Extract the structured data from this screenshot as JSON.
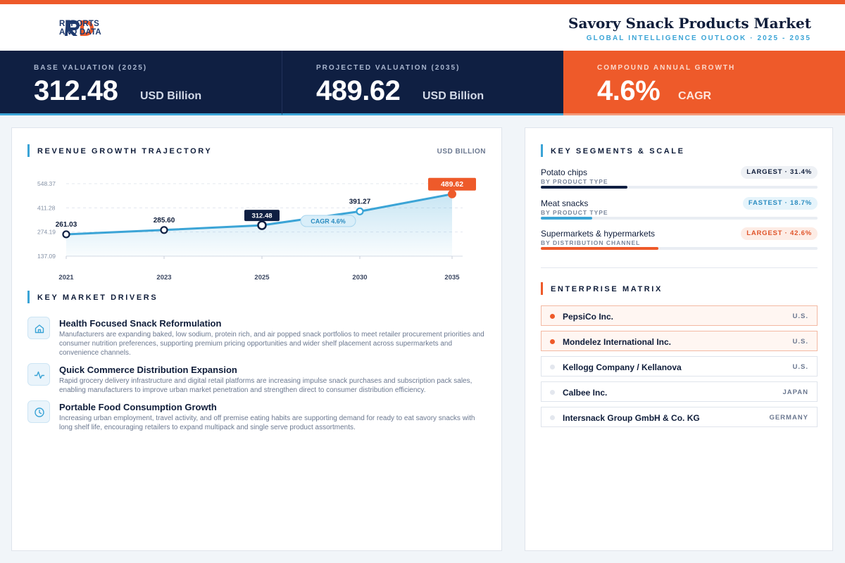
{
  "brand": {
    "logo_line1": "REPORTS",
    "logo_line2": "AND DATA",
    "logo_mark": "RD",
    "colors": {
      "navy": "#0f1f42",
      "orange": "#ee5a2a",
      "blue": "#3ba4d6"
    }
  },
  "header": {
    "title": "Savory Snack Products Market",
    "subtitle": "GLOBAL INTELLIGENCE OUTLOOK  ·  2025 - 2035"
  },
  "kpis": [
    {
      "label": "BASE VALUATION (2025)",
      "value": "312.48",
      "unit": "USD Billion"
    },
    {
      "label": "PROJECTED VALUATION (2035)",
      "value": "489.62",
      "unit": "USD Billion"
    },
    {
      "label": "COMPOUND ANNUAL GROWTH",
      "value": "4.6%",
      "unit": "CAGR"
    }
  ],
  "revenue": {
    "title": "REVENUE GROWTH TRAJECTORY",
    "unit_label": "USD BILLION",
    "cagr_pill": "CAGR 4.6%"
  },
  "chart_data": {
    "type": "area",
    "categories": [
      "2021",
      "2023",
      "2025",
      "2030",
      "2035"
    ],
    "values": [
      261.03,
      285.6,
      312.48,
      391.27,
      489.62
    ],
    "value_labels": [
      "261.03",
      "285.60",
      "312.48",
      "391.27",
      "489.62"
    ],
    "y_ticks": [
      "548.37",
      "411.28",
      "274.19",
      "137.09"
    ],
    "y_tick_values": [
      548.37,
      411.28,
      274.19,
      137.09
    ],
    "ylim": [
      137.09,
      548.37
    ],
    "grid": true,
    "highlight_base": "2025",
    "highlight_end": "2035"
  },
  "drivers": {
    "title": "KEY MARKET DRIVERS",
    "items": [
      {
        "icon": "home-icon",
        "title": "Health Focused Snack Reformulation",
        "desc": "Manufacturers are expanding baked, low sodium, protein rich, and air popped snack portfolios to meet retailer procurement priorities and consumer nutrition preferences, supporting premium pricing opportunities and wider shelf placement across supermarkets and convenience channels."
      },
      {
        "icon": "activity-icon",
        "title": "Quick Commerce Distribution Expansion",
        "desc": "Rapid grocery delivery infrastructure and digital retail platforms are increasing impulse snack purchases and subscription pack sales, enabling manufacturers to improve urban market penetration and strengthen direct to consumer distribution efficiency."
      },
      {
        "icon": "clock-icon",
        "title": "Portable Food Consumption Growth",
        "desc": "Increasing urban employment, travel activity, and off premise eating habits are supporting demand for ready to eat savory snacks with long shelf life, encouraging retailers to expand multipack and single serve product assortments."
      }
    ]
  },
  "segments": {
    "title": "KEY SEGMENTS & SCALE",
    "items": [
      {
        "name": "Potato chips",
        "sub": "BY PRODUCT TYPE",
        "badge": "LARGEST · 31.4%",
        "share": 0.314,
        "bar_color": "#0f1f42",
        "badge_bg": "#eef1f5",
        "badge_color": "#0f1d3a"
      },
      {
        "name": "Meat snacks",
        "sub": "BY PRODUCT TYPE",
        "badge": "FASTEST · 18.7%",
        "share": 0.187,
        "bar_color": "#3ba4d6",
        "badge_bg": "#e6f4fb",
        "badge_color": "#2a8cc0"
      },
      {
        "name": "Supermarkets & hypermarkets",
        "sub": "BY DISTRIBUTION CHANNEL",
        "badge": "LARGEST · 42.6%",
        "share": 0.426,
        "bar_color": "#ee5a2a",
        "badge_bg": "#fdece5",
        "badge_color": "#e0542a"
      }
    ]
  },
  "enterprise": {
    "title": "ENTERPRISE MATRIX",
    "items": [
      {
        "name": "PepsiCo Inc.",
        "country": "U.S.",
        "highlight": true
      },
      {
        "name": "Mondelez International Inc.",
        "country": "U.S.",
        "highlight": true
      },
      {
        "name": "Kellogg Company / Kellanova",
        "country": "U.S.",
        "highlight": false
      },
      {
        "name": "Calbee Inc.",
        "country": "JAPAN",
        "highlight": false
      },
      {
        "name": "Intersnack Group GmbH & Co. KG",
        "country": "GERMANY",
        "highlight": false
      }
    ]
  }
}
